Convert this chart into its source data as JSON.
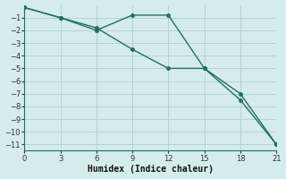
{
  "xlabel": "Humidex (Indice chaleur)",
  "line1_x": [
    0,
    3,
    6,
    9,
    12,
    15,
    18,
    21
  ],
  "line1_y": [
    -0.2,
    -1.0,
    -2.0,
    -0.8,
    -0.8,
    -5.0,
    -7.0,
    -11.0
  ],
  "line2_x": [
    0,
    3,
    6,
    9,
    12,
    15,
    18,
    21
  ],
  "line2_y": [
    -0.2,
    -1.0,
    -1.8,
    -3.5,
    -5.0,
    -5.0,
    -7.5,
    -11.0
  ],
  "line_color": "#2a6b65",
  "bg_color": "#d4ecec",
  "grid_color": "#b5d5d0",
  "xlim": [
    0,
    21
  ],
  "ylim": [
    -11.5,
    0.0
  ],
  "xticks": [
    0,
    3,
    6,
    9,
    12,
    15,
    18,
    21
  ],
  "yticks": [
    -1,
    -2,
    -3,
    -4,
    -5,
    -6,
    -7,
    -8,
    -9,
    -10,
    -11
  ],
  "marker": "o",
  "marker_size": 2.5,
  "line_width": 1.0
}
